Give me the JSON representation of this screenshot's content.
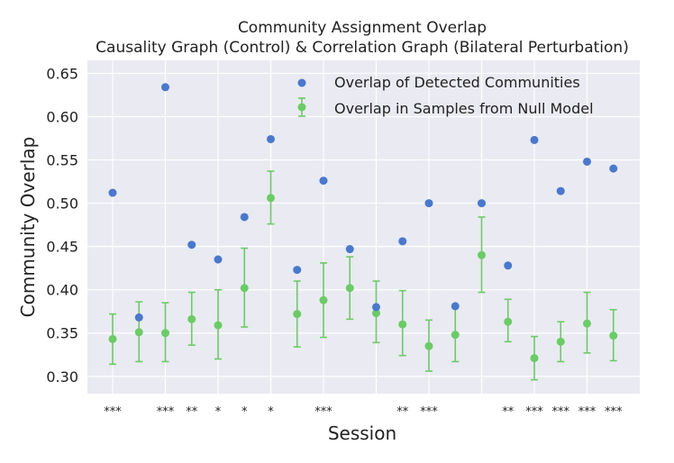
{
  "chart_data": {
    "type": "scatter",
    "title": "Community Assignment Overlap",
    "subtitle": "Causality Graph (Control) & Correlation Graph (Bilateral Perturbation)",
    "xlabel": "Session",
    "ylabel": "Community Overlap",
    "ylim": [
      0.28,
      0.665
    ],
    "yticks": [
      "0.30",
      "0.35",
      "0.40",
      "0.45",
      "0.50",
      "0.55",
      "0.60",
      "0.65"
    ],
    "grid": true,
    "legend_position": "top-right",
    "colors": {
      "detected": "#4878d0",
      "null": "#6acc64",
      "background": "#eaeaf2"
    },
    "series": [
      {
        "name": "Overlap of Detected Communities",
        "values": [
          0.512,
          0.368,
          0.634,
          0.452,
          0.435,
          0.484,
          0.574,
          0.423,
          0.526,
          0.447,
          0.38,
          0.456,
          0.5,
          0.381,
          0.5,
          0.428,
          0.573,
          0.514,
          0.548,
          0.54
        ]
      },
      {
        "name": "Overlap in Samples from Null Model",
        "values": [
          0.343,
          0.351,
          0.35,
          0.366,
          0.359,
          0.402,
          0.506,
          0.372,
          0.388,
          0.402,
          0.373,
          0.36,
          0.335,
          0.348,
          0.44,
          0.363,
          0.321,
          0.34,
          0.361,
          0.347
        ],
        "error_low": [
          0.314,
          0.317,
          0.317,
          0.336,
          0.32,
          0.357,
          0.476,
          0.334,
          0.345,
          0.366,
          0.339,
          0.324,
          0.306,
          0.317,
          0.397,
          0.34,
          0.296,
          0.317,
          0.327,
          0.318
        ],
        "error_high": [
          0.372,
          0.386,
          0.385,
          0.397,
          0.4,
          0.448,
          0.537,
          0.41,
          0.431,
          0.438,
          0.41,
          0.399,
          0.365,
          0.381,
          0.484,
          0.389,
          0.346,
          0.363,
          0.397,
          0.377
        ]
      }
    ],
    "significance": [
      "***",
      "",
      "***",
      "**",
      "*",
      "*",
      "*",
      "",
      "***",
      "",
      "",
      "**",
      "***",
      "",
      "",
      "**",
      "***",
      "***",
      "***",
      "***"
    ]
  }
}
